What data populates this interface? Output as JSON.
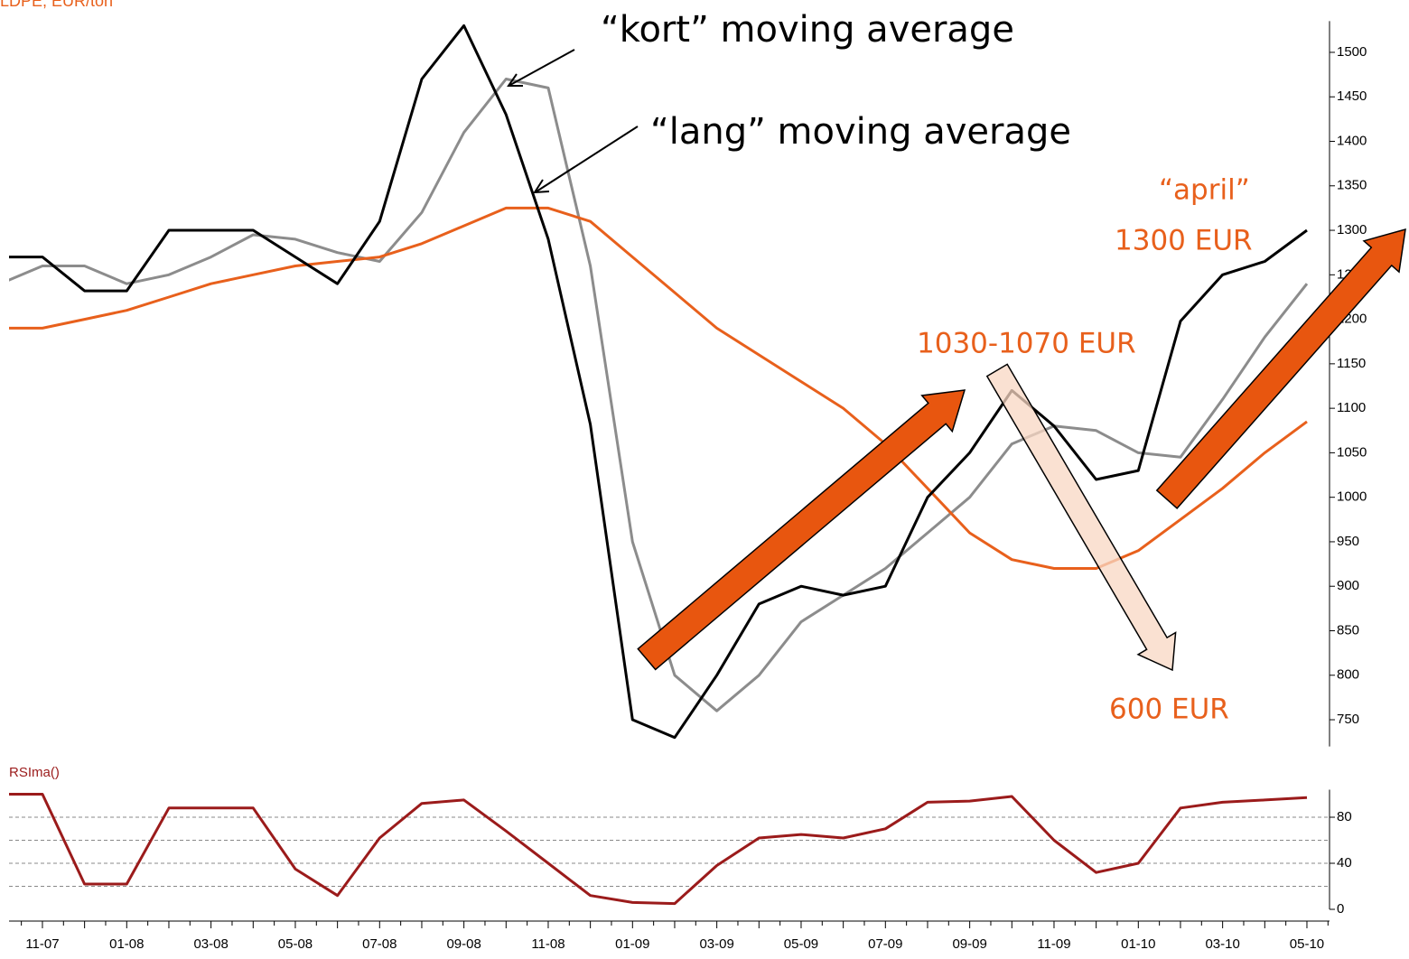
{
  "chart_data": [
    {
      "type": "line",
      "title": "LDPE, EUR/ton",
      "categories": [
        null,
        "11-07",
        null,
        "01-08",
        null,
        "03-08",
        null,
        "05-08",
        null,
        "07-08",
        null,
        "09-08",
        null,
        "11-08",
        null,
        "01-09",
        null,
        "03-09",
        null,
        "05-09",
        null,
        "07-09",
        null,
        "09-09",
        null,
        "11-09",
        null,
        "01-10",
        null,
        "03-10",
        null,
        "05-10"
      ],
      "series": [
        {
          "color": "#8c8c8c",
          "values": [
            1240,
            1260,
            1260,
            1240,
            1250,
            1270,
            1295,
            1290,
            1275,
            1265,
            1320,
            1410,
            1470,
            1460,
            1260,
            950,
            800,
            760,
            800,
            860,
            890,
            920,
            960,
            1000,
            1060,
            1080,
            1075,
            1050,
            1045,
            1110,
            1180,
            1240
          ]
        },
        {
          "color": "#e8601c",
          "values": [
            1190,
            1190,
            1200,
            1210,
            1225,
            1240,
            1250,
            1260,
            1265,
            1270,
            1285,
            1305,
            1325,
            1325,
            1310,
            1270,
            1230,
            1190,
            1160,
            1130,
            1100,
            1060,
            1010,
            960,
            930,
            920,
            920,
            940,
            975,
            1010,
            1050,
            1085
          ]
        },
        {
          "color": "#000000",
          "values": [
            1270,
            1270,
            1232,
            1232,
            1300,
            1300,
            1300,
            1270,
            1240,
            1310,
            1470,
            1530,
            1430,
            1290,
            1082,
            750,
            730,
            800,
            880,
            900,
            890,
            900,
            1000,
            1050,
            1120,
            1080,
            1020,
            1030,
            1198,
            1250,
            1265,
            1300
          ]
        }
      ],
      "ylim": [
        720,
        1530
      ],
      "yticks": [
        750,
        800,
        850,
        900,
        950,
        1000,
        1050,
        1100,
        1150,
        1200,
        1250,
        1300,
        1350,
        1400,
        1450,
        1500
      ],
      "annotations": [
        "“kort” moving average",
        "“lang” moving average",
        "“april”",
        "1300 EUR",
        "1030-1070 EUR",
        "600 EUR"
      ]
    },
    {
      "type": "line",
      "title": "RSIma()",
      "series": [
        {
          "color": "#9b1b1b",
          "values": [
            100,
            100,
            22,
            22,
            88,
            88,
            88,
            35,
            12,
            62,
            92,
            95,
            68,
            40,
            12,
            6,
            5,
            38,
            62,
            65,
            62,
            70,
            93,
            94,
            98,
            60,
            32,
            40,
            88,
            93,
            95,
            97
          ]
        }
      ],
      "ylim": [
        0,
        100
      ],
      "yticks": [
        0,
        40,
        80
      ],
      "grid_lines": [
        20,
        40,
        60,
        80
      ]
    }
  ]
}
